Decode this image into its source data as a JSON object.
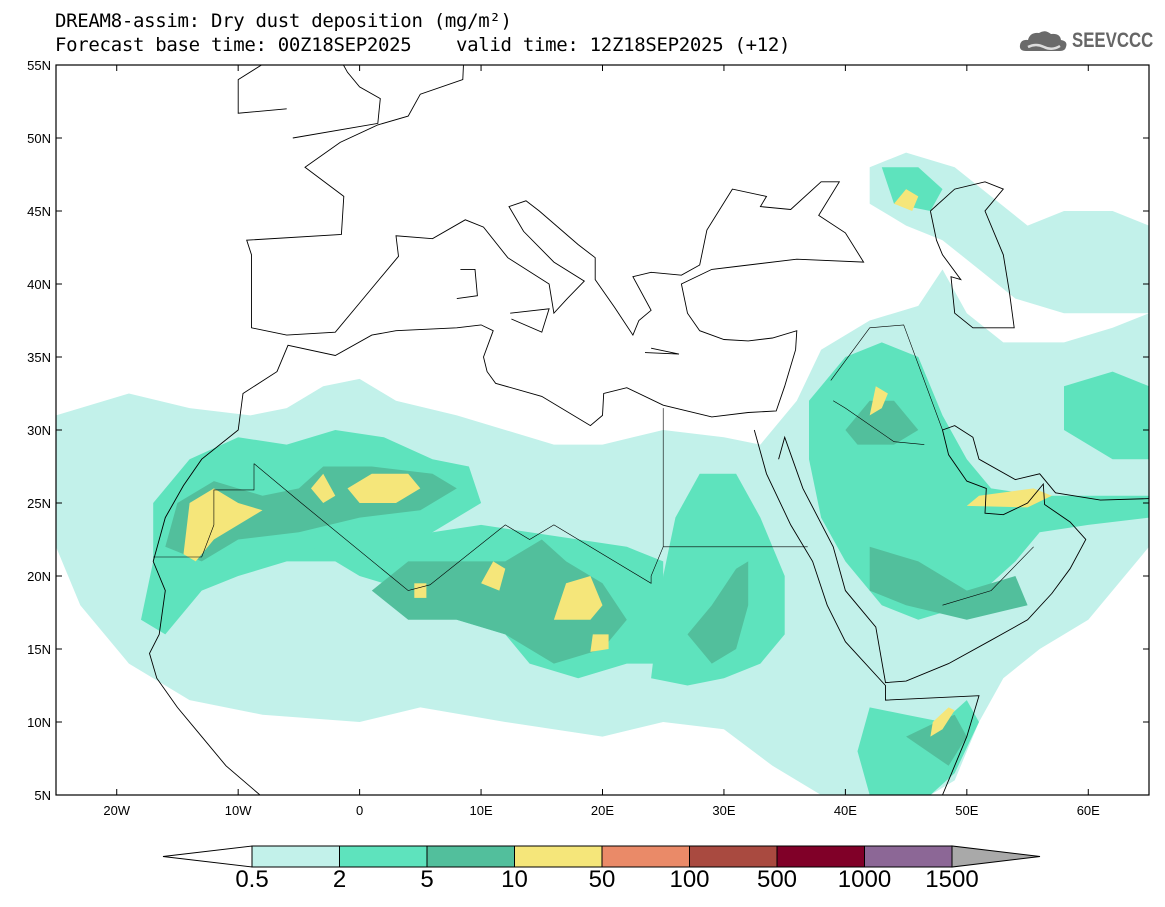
{
  "header": {
    "title_line1": "DREAM8-assim: Dry dust deposition (mg/m²)",
    "title_line2": "Forecast base time: 00Z18SEP2025    valid time: 12Z18SEP2025 (+12)",
    "logo_text": "SEEVCCC"
  },
  "map": {
    "lon_range": [
      -25,
      65
    ],
    "lat_range": [
      5,
      55
    ],
    "lat_ticks": [
      {
        "value": 55,
        "label": "55N"
      },
      {
        "value": 50,
        "label": "50N"
      },
      {
        "value": 45,
        "label": "45N"
      },
      {
        "value": 40,
        "label": "40N"
      },
      {
        "value": 35,
        "label": "35N"
      },
      {
        "value": 30,
        "label": "30N"
      },
      {
        "value": 25,
        "label": "25N"
      },
      {
        "value": 20,
        "label": "20N"
      },
      {
        "value": 15,
        "label": "15N"
      },
      {
        "value": 10,
        "label": "10N"
      },
      {
        "value": 5,
        "label": "5N"
      }
    ],
    "lon_ticks": [
      {
        "value": -20,
        "label": "20W"
      },
      {
        "value": -10,
        "label": "10W"
      },
      {
        "value": 0,
        "label": "0"
      },
      {
        "value": 10,
        "label": "10E"
      },
      {
        "value": 20,
        "label": "20E"
      },
      {
        "value": 30,
        "label": "30E"
      },
      {
        "value": 40,
        "label": "40E"
      },
      {
        "value": 50,
        "label": "50E"
      },
      {
        "value": 60,
        "label": "60E"
      }
    ]
  },
  "colorbar": {
    "labels": [
      "0.5",
      "2",
      "5",
      "10",
      "50",
      "100",
      "500",
      "1000",
      "1500"
    ],
    "colors": [
      "#c2f1ea",
      "#5ee3bd",
      "#52bf9c",
      "#f5e67a",
      "#ea8a68",
      "#a94a40",
      "#800028",
      "#8c6796"
    ],
    "under_color": "#ffffff",
    "over_color": "#a9a9a9"
  }
}
